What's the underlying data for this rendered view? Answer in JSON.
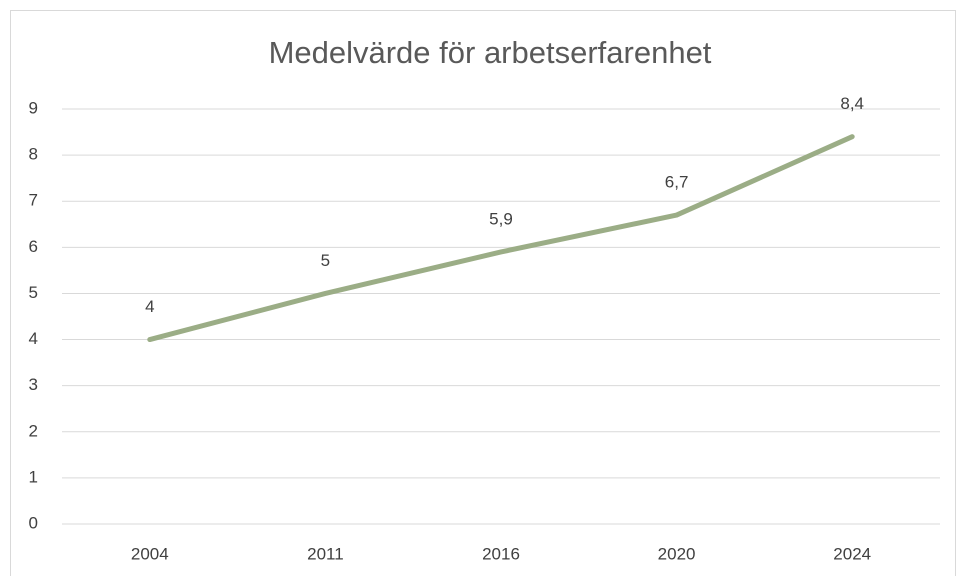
{
  "chart_data": {
    "type": "line",
    "title": "Medelvärde för arbetserfarenhet",
    "categories": [
      "2004",
      "2011",
      "2016",
      "2020",
      "2024"
    ],
    "series": [
      {
        "name": "Medelvärde",
        "color": "#9bad86",
        "values": [
          4,
          5,
          5.9,
          6.7,
          8.4
        ],
        "value_labels": [
          "4",
          "5",
          "5,9",
          "6,7",
          "8,4"
        ]
      }
    ],
    "ylim": [
      0,
      9
    ],
    "yticks": [
      0,
      1,
      2,
      3,
      4,
      5,
      6,
      7,
      8,
      9
    ],
    "grid": true
  }
}
